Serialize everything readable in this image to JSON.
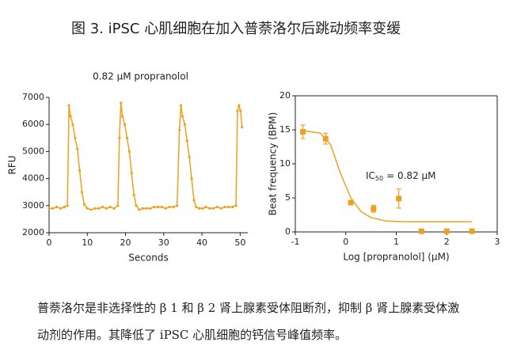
{
  "title": "图 3. iPSC 心肌细胞在加入普萘洛尔后跳动频率变缓",
  "caption": [
    "普萘洛尔是非选择性的 β 1 和 β 2 肾上腺素受体阻断剂，抑制 β 肾上腺素受体激",
    "动剂的作用。其降低了 iPSC 心肌细胞的钙信号峰值频率。"
  ],
  "chart_data": [
    {
      "type": "line",
      "title": "0.82 μM propranolol",
      "x_label": "Seconds",
      "y_label": "RFU",
      "color": "#f0a020",
      "x": [
        0,
        1,
        2,
        3,
        4,
        4.8,
        5.2,
        5.6,
        6.2,
        6.8,
        7.4,
        8.0,
        8.6,
        9.2,
        10,
        11,
        12,
        13,
        14,
        15,
        16,
        17,
        18,
        18.4,
        18.8,
        19.2,
        19.8,
        20.4,
        21,
        21.6,
        22.2,
        22.8,
        23.6,
        24.5,
        25.5,
        26.5,
        27.5,
        28.5,
        29.5,
        30.5,
        31.5,
        32.5,
        33.5,
        34.1,
        34.5,
        34.9,
        35.5,
        36.1,
        36.7,
        37.3,
        37.9,
        38.5,
        39.3,
        40.2,
        41,
        42,
        43,
        44,
        45,
        46,
        47,
        48,
        48.9,
        49.3,
        49.7,
        50.1,
        50.5
      ],
      "values": [
        2900,
        2900,
        2950,
        2900,
        2950,
        3000,
        6700,
        6300,
        6000,
        5500,
        5100,
        4300,
        3500,
        3050,
        2900,
        2850,
        2900,
        2900,
        2950,
        2900,
        2950,
        2900,
        3000,
        5500,
        6800,
        6300,
        6000,
        5500,
        5000,
        4200,
        3400,
        3000,
        2850,
        2900,
        2900,
        2900,
        2950,
        2950,
        2950,
        2900,
        2950,
        2950,
        3000,
        5800,
        6700,
        6300,
        6000,
        5400,
        4800,
        4000,
        3200,
        2950,
        2900,
        2900,
        2950,
        2900,
        2900,
        2950,
        2900,
        2950,
        2950,
        2950,
        3000,
        6500,
        6700,
        6500,
        5900
      ],
      "xlim": [
        0,
        52
      ],
      "xticks": [
        0,
        10,
        20,
        30,
        40,
        50
      ],
      "ylim": [
        2000,
        7000
      ],
      "yticks": [
        2000,
        3000,
        4000,
        5000,
        6000,
        7000
      ]
    },
    {
      "type": "scatter",
      "x_label": "Log [propranolol] (μM)",
      "y_label": "Beat frequency (BPM)",
      "color": "#f0a020",
      "annotation": {
        "text": "IC",
        "sub": "50",
        "rest": "= 0.82 μM"
      },
      "x": [
        -0.85,
        -0.4,
        0.1,
        0.55,
        1.05,
        1.5,
        2.0,
        2.5
      ],
      "values": [
        14.7,
        13.7,
        4.3,
        3.4,
        4.9,
        0.1,
        0.1,
        0.1
      ],
      "errors": [
        1.0,
        0.8,
        0.3,
        0.5,
        1.4,
        0,
        0,
        0
      ],
      "fit": {
        "x": [
          -0.85,
          -0.5,
          -0.3,
          -0.1,
          0.1,
          0.3,
          0.5,
          0.8,
          1.2,
          2.5
        ],
        "values": [
          14.9,
          14.5,
          12.8,
          8.5,
          5.0,
          3.0,
          2.1,
          1.6,
          1.5,
          1.5
        ]
      },
      "xlim": [
        -1,
        3
      ],
      "xticks": [
        -1,
        0,
        1,
        2,
        3
      ],
      "ylim": [
        0,
        20
      ],
      "yticks": [
        0,
        5,
        10,
        15,
        20
      ]
    }
  ]
}
